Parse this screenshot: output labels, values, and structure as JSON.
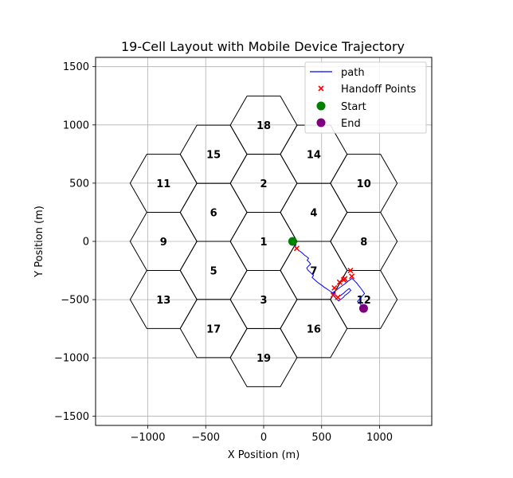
{
  "chart_data": {
    "type": "scatter",
    "title": "19-Cell Layout with Mobile Device Trajectory",
    "xlabel": "X Position (m)",
    "ylabel": "Y Position (m)",
    "xlim": [
      -1450,
      1450
    ],
    "ylim": [
      -1580,
      1580
    ],
    "grid": true,
    "legend_position": "top-right",
    "x_ticks": [
      -1000,
      -500,
      0,
      500,
      1000
    ],
    "y_ticks": [
      -1500,
      -1000,
      -500,
      0,
      500,
      1000,
      1500
    ],
    "x_tick_labels": [
      "−1000",
      "−500",
      "0",
      "500",
      "1000"
    ],
    "y_tick_labels": [
      "−1500",
      "−1000",
      "−500",
      "0",
      "500",
      "1000",
      "1500"
    ],
    "hex_radius": 288,
    "cells": [
      {
        "id": "1",
        "x": 0,
        "y": 0
      },
      {
        "id": "2",
        "x": 0,
        "y": 499
      },
      {
        "id": "3",
        "x": 0,
        "y": -499
      },
      {
        "id": "4",
        "x": 432,
        "y": 249
      },
      {
        "id": "5",
        "x": -432,
        "y": -249
      },
      {
        "id": "6",
        "x": -432,
        "y": 249
      },
      {
        "id": "7",
        "x": 432,
        "y": -249
      },
      {
        "id": "8",
        "x": 864,
        "y": 0
      },
      {
        "id": "9",
        "x": -864,
        "y": 0
      },
      {
        "id": "10",
        "x": 864,
        "y": 499
      },
      {
        "id": "11",
        "x": -864,
        "y": 499
      },
      {
        "id": "12",
        "x": 864,
        "y": -499
      },
      {
        "id": "13",
        "x": -864,
        "y": -499
      },
      {
        "id": "14",
        "x": 432,
        "y": 748
      },
      {
        "id": "15",
        "x": -432,
        "y": 748
      },
      {
        "id": "16",
        "x": 432,
        "y": -748
      },
      {
        "id": "17",
        "x": -432,
        "y": -748
      },
      {
        "id": "18",
        "x": 0,
        "y": 998
      },
      {
        "id": "19",
        "x": 0,
        "y": -998
      }
    ],
    "series": [
      {
        "name": "path",
        "type": "line",
        "color": "#0000ff",
        "x": [
          250,
          265,
          280,
          272,
          285,
          300,
          318,
          335,
          352,
          370,
          388,
          375,
          392,
          405,
          388,
          372,
          380,
          398,
          415,
          430,
          418,
          435,
          452,
          470,
          488,
          505,
          520,
          540,
          560,
          578,
          595,
          612,
          628,
          640,
          655,
          672,
          690,
          705,
          720,
          738,
          752,
          735,
          718,
          700,
          690,
          676,
          660,
          648,
          635,
          622,
          610,
          598,
          585,
          600,
          618,
          634,
          650,
          668,
          684,
          700,
          716,
          730,
          748,
          762,
          776,
          790,
          805,
          818,
          832,
          845,
          858,
          870,
          855,
          840,
          825,
          810,
          828,
          846,
          862
        ],
        "y": [
          0,
          -12,
          -28,
          -42,
          -60,
          -75,
          -88,
          -102,
          -118,
          -130,
          -145,
          -162,
          -178,
          -195,
          -210,
          -228,
          -245,
          -262,
          -278,
          -292,
          -310,
          -325,
          -340,
          -355,
          -368,
          -380,
          -392,
          -405,
          -418,
          -430,
          -442,
          -455,
          -468,
          -480,
          -470,
          -458,
          -445,
          -430,
          -418,
          -405,
          -420,
          -438,
          -452,
          -465,
          -478,
          -490,
          -500,
          -512,
          -500,
          -488,
          -475,
          -462,
          -450,
          -438,
          -425,
          -412,
          -400,
          -388,
          -376,
          -365,
          -352,
          -340,
          -328,
          -318,
          -330,
          -345,
          -360,
          -378,
          -395,
          -412,
          -430,
          -448,
          -465,
          -482,
          -498,
          -515,
          -532,
          -550,
          -575
        ]
      },
      {
        "name": "Handoff Points",
        "type": "scatter",
        "marker": "x",
        "color": "#ff0000",
        "x": [
          260,
          285,
          610,
          655,
          690,
          748,
          600,
          640,
          700,
          760
        ],
        "y": [
          -10,
          -60,
          -400,
          -350,
          -330,
          -250,
          -460,
          -480,
          -320,
          -300
        ]
      },
      {
        "name": "Start",
        "type": "scatter",
        "marker": "circle",
        "color": "#008000",
        "x": [
          250
        ],
        "y": [
          0
        ]
      },
      {
        "name": "End",
        "type": "scatter",
        "marker": "circle",
        "color": "#800080",
        "x": [
          862
        ],
        "y": [
          -575
        ]
      }
    ]
  }
}
